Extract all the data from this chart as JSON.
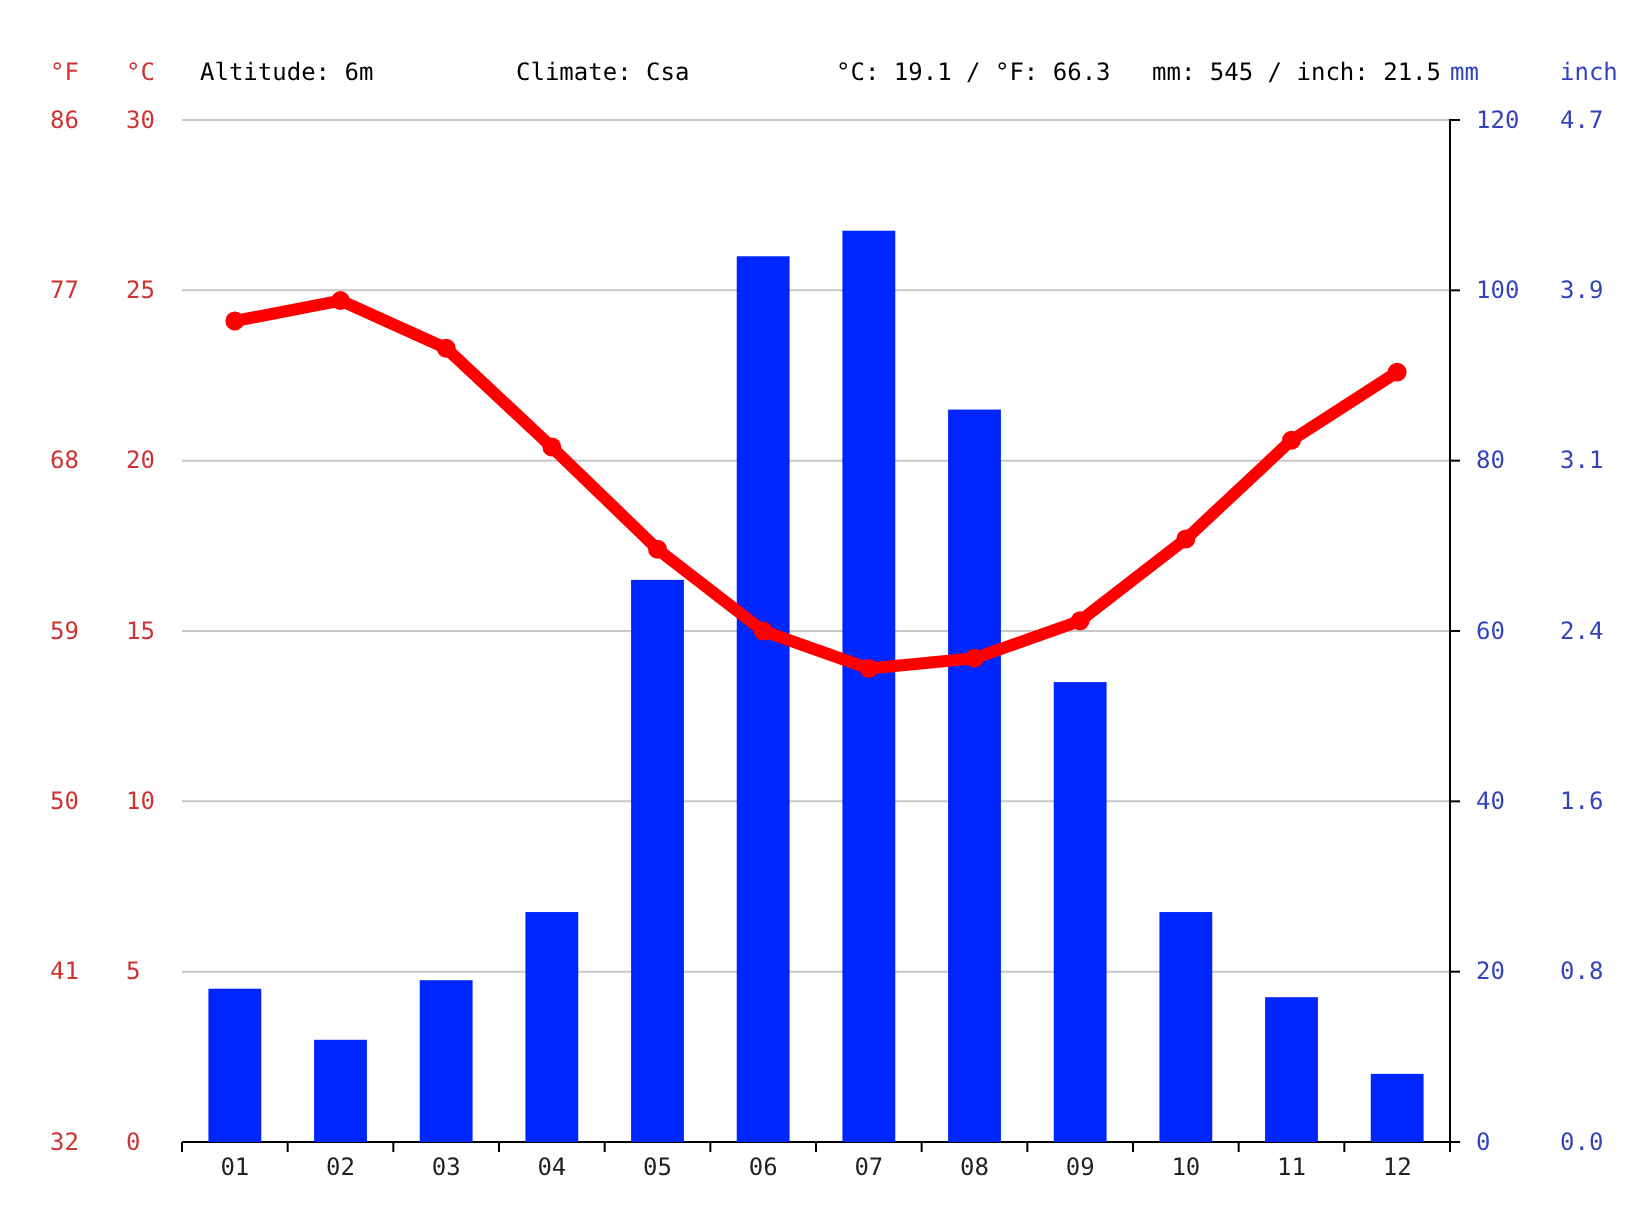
{
  "chart_data": {
    "type": "bar",
    "categories": [
      "01",
      "02",
      "03",
      "04",
      "05",
      "06",
      "07",
      "08",
      "09",
      "10",
      "11",
      "12"
    ],
    "series": [
      {
        "axis": "y2",
        "color": "#0026ff",
        "values": [
          18,
          12,
          19,
          27,
          66,
          104,
          107,
          86,
          54,
          27,
          17,
          8
        ]
      },
      {
        "type": "line",
        "axis": "y",
        "color": "#ff0000",
        "marker": "circle",
        "line_style": "solid",
        "values": [
          24.1,
          24.7,
          23.3,
          20.4,
          17.4,
          15.0,
          13.9,
          14.2,
          15.3,
          17.7,
          20.6,
          22.6
        ]
      }
    ],
    "ylabel": "°C",
    "y2label": "mm",
    "y3label": "°F",
    "ylim": [
      0,
      30
    ],
    "yticks": [
      0,
      5,
      10,
      15,
      20,
      25,
      30
    ],
    "y2lim": [
      0,
      120
    ],
    "y2ticks": [
      0,
      20,
      40,
      60,
      80,
      100,
      120
    ],
    "y3lim": [
      32,
      86
    ],
    "y3ticks": [
      32,
      41,
      50,
      59,
      68,
      77,
      86
    ],
    "grid": "y",
    "annotations": [
      "Altitude: 6m",
      "Climate: Csa",
      "°C: 19.1 / °F: 66.3",
      "mm: 545 / inch: 21.5",
      "inch",
      "0.0",
      "0.8",
      "1.6",
      "2.4",
      "3.1",
      "3.9",
      "4.7"
    ]
  }
}
